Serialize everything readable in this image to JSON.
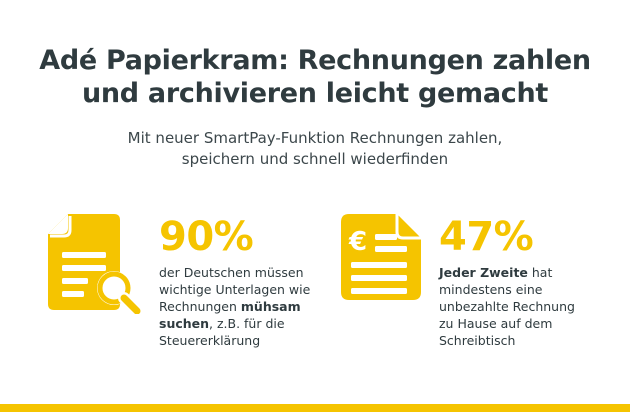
{
  "title": {
    "line1": "Adé Papierkram: Rechnungen zahlen",
    "line2": "und archivieren leicht gemacht"
  },
  "subtitle": {
    "line1": "Mit neuer SmartPay-Funktion Rechnungen zahlen,",
    "line2": "speichern und schnell wiederfinden"
  },
  "stats": [
    {
      "icon": "document-search-icon",
      "value": "90%",
      "lines": [
        {
          "parts": [
            {
              "text": "der Deutschen müssen",
              "bold": false
            }
          ]
        },
        {
          "parts": [
            {
              "text": "wichtige Unterlagen wie",
              "bold": false
            }
          ]
        },
        {
          "parts": [
            {
              "text": "Rechnungen ",
              "bold": false
            },
            {
              "text": "mühsam",
              "bold": true
            }
          ]
        },
        {
          "parts": [
            {
              "text": "suchen",
              "bold": true
            },
            {
              "text": ", z.B. für die",
              "bold": false
            }
          ]
        },
        {
          "parts": [
            {
              "text": "Steuererklärung",
              "bold": false
            }
          ]
        }
      ]
    },
    {
      "icon": "euro-document-icon",
      "value": "47%",
      "lines": [
        {
          "parts": [
            {
              "text": "Jeder Zweite",
              "bold": true
            },
            {
              "text": " hat",
              "bold": false
            }
          ]
        },
        {
          "parts": [
            {
              "text": "mindestens eine",
              "bold": false
            }
          ]
        },
        {
          "parts": [
            {
              "text": "unbezahlte Rechnung",
              "bold": false
            }
          ]
        },
        {
          "parts": [
            {
              "text": "zu Hause auf dem",
              "bold": false
            }
          ]
        },
        {
          "parts": [
            {
              "text": "Schreibtisch",
              "bold": false
            }
          ]
        }
      ]
    }
  ],
  "icon_euro_symbol": "€",
  "colors": {
    "accent": "#f5c400",
    "text": "#2f3b3f",
    "background": "#ffffff"
  }
}
